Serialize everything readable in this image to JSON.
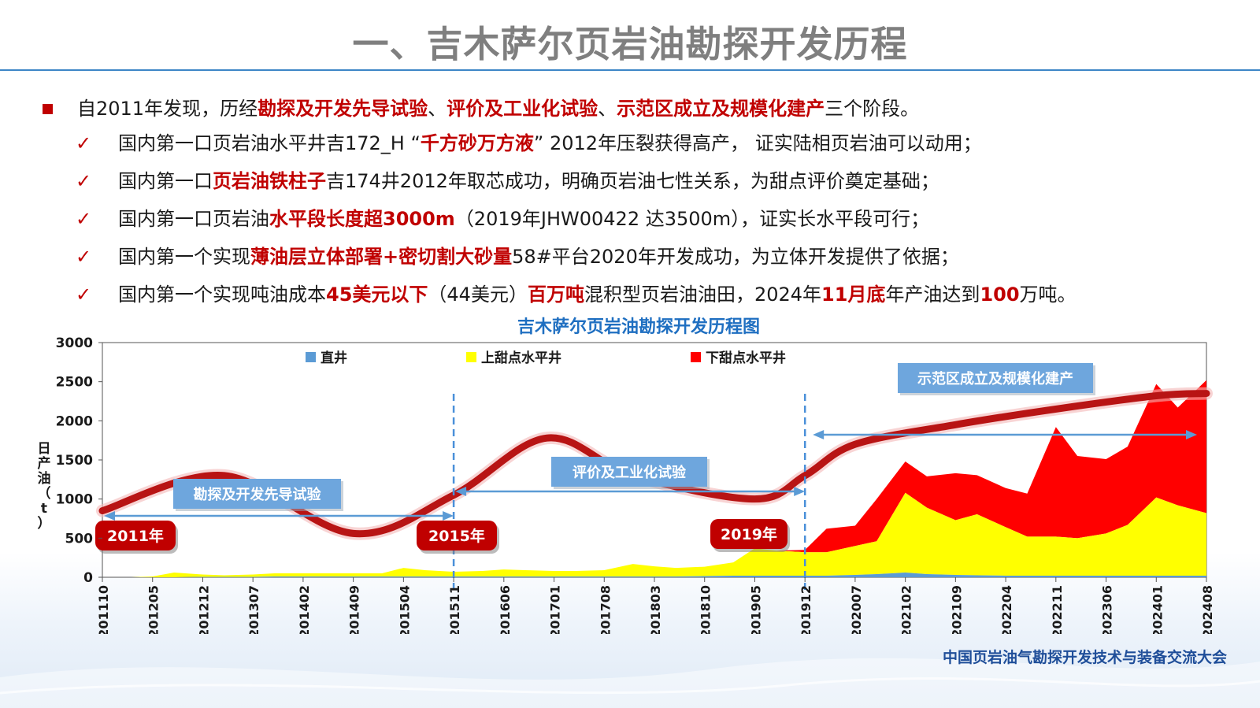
{
  "slide": {
    "title": "一、吉木萨尔页岩油勘探开发历程",
    "intro": {
      "parts": [
        {
          "t": "自2011年发现，历经",
          "em": false
        },
        {
          "t": "勘探及开发先导试验",
          "em": true
        },
        {
          "t": "、",
          "em": false
        },
        {
          "t": "评价及工业化试验",
          "em": true
        },
        {
          "t": "、",
          "em": false
        },
        {
          "t": "示范区成立及规模化建产",
          "em": true
        },
        {
          "t": "三个阶段。",
          "em": false
        }
      ]
    },
    "items": [
      {
        "parts": [
          {
            "t": "国内第一口页岩油水平井吉172_H  “",
            "em": false
          },
          {
            "t": "千方砂万方液",
            "em": true
          },
          {
            "t": "”  2012年压裂获得高产， 证实陆相页岩油可以动用；",
            "em": false
          }
        ]
      },
      {
        "parts": [
          {
            "t": "国内第一口",
            "em": false
          },
          {
            "t": "页岩油铁柱子",
            "em": true
          },
          {
            "t": "吉174井2012年取芯成功，明确页岩油七性关系，为甜点评价奠定基础；",
            "em": false
          }
        ]
      },
      {
        "parts": [
          {
            "t": "国内第一口页岩油",
            "em": false
          },
          {
            "t": "水平段长度超3000m",
            "em": true
          },
          {
            "t": "（2019年JHW00422 达3500m），证实长水平段可行；",
            "em": false
          }
        ]
      },
      {
        "parts": [
          {
            "t": "国内第一个实现",
            "em": false
          },
          {
            "t": "薄油层立体部署+密切割大砂量",
            "em": true
          },
          {
            "t": "58#平台2020年开发成功，为立体开发提供了依据；",
            "em": false
          }
        ]
      },
      {
        "parts": [
          {
            "t": "国内第一个实现吨油成本",
            "em": false
          },
          {
            "t": "45美元以下",
            "em": true
          },
          {
            "t": "（44美元）",
            "em": false
          },
          {
            "t": "百万吨",
            "em": true
          },
          {
            "t": "混积型页岩油油田，2024年",
            "em": false
          },
          {
            "t": "11月底",
            "em": true
          },
          {
            "t": "年产油达到",
            "em": false
          },
          {
            "t": "100",
            "em": true
          },
          {
            "t": "万吨。",
            "em": false
          }
        ]
      }
    ],
    "footer": "中国页岩油气勘探开发技术与装备交流大会"
  },
  "colors": {
    "accent_red": "#c00000",
    "title_gray": "#7f7f7f",
    "rule_blue": "#3d86c6",
    "chart_title_blue": "#1f6fc1",
    "series_vertical": "#5b9bd5",
    "series_upper": "#ffff00",
    "series_lower": "#ff0000",
    "stage_box": "#6ea6dd",
    "year_badge": "#c00000",
    "footer_blue": "#1f4e99"
  },
  "chart_data": {
    "type": "area",
    "stacked": true,
    "title": "吉木萨尔页岩油勘探开发历程图",
    "ylabel": "日产油（t）",
    "xlabel": "",
    "ylim": [
      0,
      3000
    ],
    "yticks": [
      0,
      500,
      1000,
      1500,
      2000,
      2500,
      3000
    ],
    "xticks": [
      "201110",
      "201205",
      "201212",
      "201307",
      "201402",
      "201409",
      "201504",
      "201511",
      "201606",
      "201701",
      "201708",
      "201803",
      "201810",
      "201905",
      "201912",
      "202007",
      "202102",
      "202109",
      "202204",
      "202211",
      "202306",
      "202401",
      "202408"
    ],
    "grid": false,
    "legend_position": "top",
    "x": [
      "201110",
      "201202",
      "201205",
      "201208",
      "201212",
      "201303",
      "201307",
      "201310",
      "201402",
      "201406",
      "201409",
      "201501",
      "201504",
      "201507",
      "201511",
      "201603",
      "201606",
      "201609",
      "201701",
      "201704",
      "201708",
      "201712",
      "201803",
      "201806",
      "201810",
      "201902",
      "201905",
      "201908",
      "201912",
      "202003",
      "202007",
      "202010",
      "202102",
      "202105",
      "202109",
      "202112",
      "202204",
      "202207",
      "202211",
      "202302",
      "202306",
      "202309",
      "202401",
      "202404",
      "202408"
    ],
    "series": [
      {
        "name": "直井",
        "values": [
          0,
          0,
          0,
          0,
          5,
          5,
          5,
          10,
          10,
          10,
          10,
          10,
          10,
          10,
          10,
          10,
          10,
          10,
          10,
          10,
          10,
          10,
          10,
          10,
          15,
          20,
          20,
          20,
          20,
          20,
          30,
          40,
          60,
          40,
          30,
          25,
          20,
          20,
          20,
          20,
          20,
          20,
          20,
          20,
          20
        ]
      },
      {
        "name": "上甜点水平井",
        "values": [
          0,
          0,
          10,
          60,
          30,
          20,
          30,
          40,
          40,
          40,
          40,
          40,
          110,
          80,
          60,
          70,
          90,
          80,
          70,
          70,
          80,
          160,
          130,
          110,
          120,
          170,
          350,
          320,
          300,
          300,
          370,
          420,
          1020,
          850,
          700,
          780,
          620,
          500,
          500,
          480,
          540,
          650,
          1000,
          900,
          800
        ]
      },
      {
        "name": "下甜点水平井",
        "values": [
          0,
          0,
          0,
          0,
          0,
          0,
          0,
          0,
          0,
          0,
          0,
          0,
          0,
          0,
          0,
          0,
          0,
          0,
          0,
          0,
          0,
          0,
          0,
          0,
          0,
          0,
          0,
          0,
          30,
          300,
          260,
          540,
          400,
          400,
          600,
          500,
          500,
          550,
          1400,
          1050,
          950,
          1000,
          1450,
          1250,
          1700
        ]
      }
    ],
    "stage_labels": [
      "勘探及开发先导试验",
      "评价及工业化试验",
      "示范区成立及规模化建产"
    ],
    "year_labels": [
      "2011年",
      "2015年",
      "2019年"
    ],
    "stage_boundaries": [
      "201511",
      "201912"
    ]
  }
}
